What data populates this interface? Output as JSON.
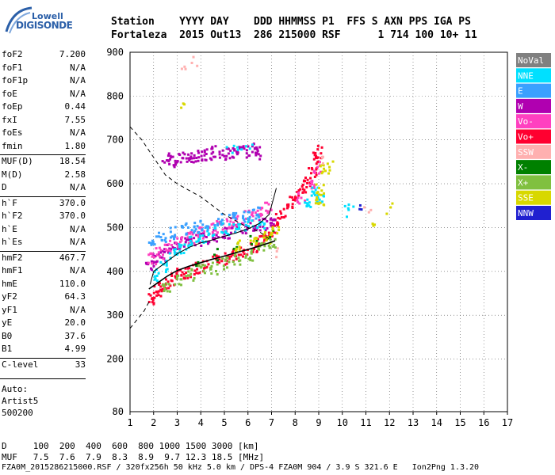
{
  "logo": {
    "line1": "Lowell",
    "line2": "DIGISONDE"
  },
  "header": {
    "line1": "Station    YYYY DAY    DDD HHMMSS P1  FFS S AXN PPS IGA PS",
    "line2": "Fortaleza  2015 Out13  286 215000 RSF      1 714 100 10+ 11"
  },
  "params": [
    {
      "name": "foF2",
      "value": "7.200"
    },
    {
      "name": "foF1",
      "value": "N/A"
    },
    {
      "name": "foF1p",
      "value": "N/A"
    },
    {
      "name": "foE",
      "value": "N/A"
    },
    {
      "name": "foEp",
      "value": "0.44"
    },
    {
      "name": "fxI",
      "value": "7.55"
    },
    {
      "name": "foEs",
      "value": "N/A"
    },
    {
      "name": "fmin",
      "value": "1.80"
    },
    {
      "name": "MUF(D)",
      "value": "18.54"
    },
    {
      "name": "M(D)",
      "value": "2.58"
    },
    {
      "name": "D",
      "value": "N/A"
    },
    {
      "name": "h`F",
      "value": "370.0"
    },
    {
      "name": "h`F2",
      "value": "370.0"
    },
    {
      "name": "h`E",
      "value": "N/A"
    },
    {
      "name": "h`Es",
      "value": "N/A"
    },
    {
      "name": "hmF2",
      "value": "467.7"
    },
    {
      "name": "hmF1",
      "value": "N/A"
    },
    {
      "name": "hmE",
      "value": "110.0"
    },
    {
      "name": "yF2",
      "value": "64.3"
    },
    {
      "name": "yF1",
      "value": "N/A"
    },
    {
      "name": "yE",
      "value": "20.0"
    },
    {
      "name": "B0",
      "value": "37.6"
    },
    {
      "name": "B1",
      "value": "4.99"
    },
    {
      "name": "C-level",
      "value": "33"
    }
  ],
  "scaling": {
    "auto_label": "Auto:",
    "scaler": "Artist5",
    "version": "500200"
  },
  "bottom": {
    "d_row": "D     100  200  400  600  800 1000 1500 3000 [km]",
    "muf_row": "MUF   7.5  7.6  7.9  8.3  8.9  9.7 12.3 18.5 [MHz]",
    "footer": "FZA0M_2015286215000.RSF / 320fx256h 50 kHz 5.0 km / DPS-4 FZA0M 904 / 3.9 S 321.6 E   Ion2Png 1.3.20"
  },
  "chart_data": {
    "type": "scatter",
    "xlim": [
      1,
      17
    ],
    "ylim": [
      80,
      900
    ],
    "x_ticks": [
      1,
      2,
      3,
      4,
      5,
      6,
      7,
      8,
      9,
      10,
      11,
      12,
      13,
      14,
      15,
      16,
      17
    ],
    "y_ticks": [
      80,
      200,
      300,
      400,
      500,
      600,
      700,
      800,
      900
    ],
    "grid": true,
    "legend_placement": "right",
    "legend": [
      {
        "name": "NoVal",
        "color": "#808080"
      },
      {
        "name": "NNE",
        "color": "#00e0ff"
      },
      {
        "name": "E",
        "color": "#3aa0ff"
      },
      {
        "name": "W",
        "color": "#b000b0"
      },
      {
        "name": "Vo-",
        "color": "#ff40c0"
      },
      {
        "name": "Vo+",
        "color": "#ff0030"
      },
      {
        "name": "SSW",
        "color": "#ffb0b0"
      },
      {
        "name": "X-",
        "color": "#008000"
      },
      {
        "name": "X+",
        "color": "#80c040"
      },
      {
        "name": "SSE",
        "color": "#d8d800"
      },
      {
        "name": "NNW",
        "color": "#2020d0"
      }
    ],
    "clusters": [
      {
        "series": "Vo+",
        "points": [
          [
            1.9,
            340
          ],
          [
            2.1,
            355
          ],
          [
            2.3,
            365
          ],
          [
            2.5,
            375
          ],
          [
            2.8,
            385
          ],
          [
            3.1,
            395
          ],
          [
            3.4,
            400
          ],
          [
            3.8,
            410
          ],
          [
            4.2,
            415
          ],
          [
            4.6,
            425
          ],
          [
            5.0,
            430
          ],
          [
            5.4,
            440
          ],
          [
            5.8,
            450
          ],
          [
            6.2,
            460
          ],
          [
            6.5,
            470
          ],
          [
            6.8,
            480
          ],
          [
            7.0,
            495
          ],
          [
            7.2,
            520
          ],
          [
            7.5,
            540
          ],
          [
            7.8,
            560
          ],
          [
            8.1,
            575
          ],
          [
            8.3,
            590
          ],
          [
            8.5,
            610
          ],
          [
            8.7,
            630
          ],
          [
            8.9,
            660
          ],
          [
            9.0,
            675
          ]
        ]
      },
      {
        "series": "W",
        "points": [
          [
            1.8,
            420
          ],
          [
            2.0,
            430
          ],
          [
            2.3,
            440
          ],
          [
            2.7,
            455
          ],
          [
            3.0,
            465
          ],
          [
            3.4,
            470
          ],
          [
            3.8,
            475
          ],
          [
            4.2,
            480
          ],
          [
            4.6,
            485
          ],
          [
            5.0,
            490
          ],
          [
            5.4,
            495
          ],
          [
            5.8,
            500
          ],
          [
            6.2,
            505
          ],
          [
            6.6,
            510
          ],
          [
            7.0,
            520
          ]
        ]
      },
      {
        "series": "Vo-",
        "points": [
          [
            1.9,
            430
          ],
          [
            2.2,
            445
          ],
          [
            2.6,
            460
          ],
          [
            3.0,
            470
          ],
          [
            3.5,
            480
          ],
          [
            4.0,
            490
          ],
          [
            4.4,
            500
          ],
          [
            4.8,
            505
          ],
          [
            5.2,
            515
          ],
          [
            5.6,
            520
          ],
          [
            6.0,
            530
          ],
          [
            6.4,
            540
          ],
          [
            6.8,
            550
          ],
          [
            8.2,
            570
          ],
          [
            8.6,
            600
          ],
          [
            8.9,
            640
          ]
        ]
      },
      {
        "series": "NNE",
        "points": [
          [
            2.0,
            395
          ],
          [
            2.4,
            415
          ],
          [
            2.8,
            440
          ],
          [
            3.2,
            455
          ],
          [
            3.6,
            470
          ],
          [
            4.0,
            480
          ],
          [
            4.4,
            495
          ],
          [
            5.0,
            500
          ],
          [
            5.5,
            505
          ],
          [
            6.0,
            510
          ],
          [
            6.5,
            515
          ],
          [
            8.5,
            560
          ],
          [
            8.8,
            580
          ],
          [
            9.0,
            570
          ]
        ]
      },
      {
        "series": "E",
        "points": [
          [
            1.9,
            470
          ],
          [
            2.3,
            480
          ],
          [
            2.8,
            490
          ],
          [
            3.3,
            500
          ],
          [
            3.7,
            505
          ],
          [
            4.1,
            510
          ],
          [
            4.7,
            520
          ],
          [
            5.3,
            525
          ],
          [
            5.9,
            530
          ],
          [
            6.3,
            535
          ]
        ]
      },
      {
        "series": "X+",
        "points": [
          [
            2.5,
            370
          ],
          [
            3.0,
            385
          ],
          [
            3.5,
            395
          ],
          [
            4.0,
            405
          ],
          [
            4.5,
            410
          ],
          [
            5.0,
            420
          ],
          [
            5.5,
            430
          ],
          [
            6.0,
            440
          ],
          [
            6.5,
            455
          ],
          [
            7.0,
            470
          ]
        ]
      },
      {
        "series": "X-",
        "points": [
          [
            3.8,
            420
          ],
          [
            4.6,
            440
          ],
          [
            5.4,
            460
          ],
          [
            6.2,
            470
          ],
          [
            6.9,
            490
          ]
        ]
      },
      {
        "series": "SSE",
        "points": [
          [
            5.6,
            460
          ],
          [
            6.2,
            470
          ],
          [
            6.8,
            480
          ],
          [
            7.1,
            500
          ],
          [
            9.0,
            560
          ],
          [
            9.0,
            590
          ],
          [
            9.2,
            640
          ]
        ]
      },
      {
        "series": "W",
        "points": [
          [
            2.5,
            660
          ],
          [
            2.8,
            655
          ],
          [
            3.1,
            660
          ],
          [
            3.4,
            660
          ],
          [
            3.7,
            665
          ],
          [
            4.0,
            665
          ],
          [
            4.3,
            670
          ],
          [
            4.6,
            675
          ],
          [
            5.0,
            670
          ],
          [
            5.3,
            675
          ],
          [
            5.6,
            675
          ],
          [
            5.9,
            675
          ],
          [
            6.2,
            680
          ],
          [
            6.4,
            672
          ]
        ]
      },
      {
        "series": "NNE",
        "points": [
          [
            5.2,
            680
          ],
          [
            5.6,
            683
          ],
          [
            6.0,
            686
          ],
          [
            10.2,
            540
          ],
          [
            10.3,
            545
          ]
        ]
      },
      {
        "series": "NNW",
        "points": [
          [
            10.7,
            540
          ]
        ]
      },
      {
        "series": "SSW",
        "points": [
          [
            3.3,
            870
          ],
          [
            3.7,
            880
          ],
          [
            7.3,
            445
          ],
          [
            9.1,
            650
          ],
          [
            11.0,
            550
          ]
        ]
      },
      {
        "series": "SSE",
        "points": [
          [
            9.4,
            640
          ],
          [
            11.2,
            510
          ],
          [
            12.0,
            545
          ],
          [
            3.1,
            790
          ]
        ]
      }
    ],
    "profile_solid": [
      [
        1.8,
        360
      ],
      [
        2.2,
        375
      ],
      [
        2.6,
        390
      ],
      [
        3.0,
        402
      ],
      [
        3.5,
        412
      ],
      [
        4.0,
        420
      ],
      [
        4.5,
        428
      ],
      [
        5.0,
        435
      ],
      [
        5.5,
        443
      ],
      [
        6.0,
        450
      ],
      [
        6.5,
        458
      ],
      [
        6.9,
        465
      ],
      [
        7.15,
        470
      ]
    ],
    "trace_upper": [
      [
        1.85,
        370
      ],
      [
        2.0,
        400
      ],
      [
        2.5,
        420
      ],
      [
        3.0,
        440
      ],
      [
        3.5,
        455
      ],
      [
        4.0,
        465
      ],
      [
        4.5,
        472
      ],
      [
        5.0,
        480
      ],
      [
        5.5,
        488
      ],
      [
        6.0,
        497
      ],
      [
        6.5,
        510
      ],
      [
        6.9,
        530
      ],
      [
        7.1,
        570
      ],
      [
        7.2,
        590
      ]
    ],
    "profile_dashed_low": [
      [
        1.0,
        270
      ],
      [
        1.3,
        290
      ],
      [
        1.6,
        310
      ],
      [
        1.8,
        330
      ]
    ],
    "profile_dashed_high": [
      [
        1.0,
        730
      ],
      [
        1.5,
        700
      ],
      [
        2.0,
        660
      ],
      [
        2.5,
        620
      ],
      [
        3.0,
        600
      ],
      [
        3.5,
        585
      ],
      [
        4.0,
        570
      ],
      [
        4.5,
        550
      ],
      [
        5.0,
        530
      ],
      [
        5.5,
        515
      ],
      [
        6.0,
        500
      ],
      [
        6.5,
        490
      ],
      [
        7.0,
        470
      ]
    ]
  }
}
